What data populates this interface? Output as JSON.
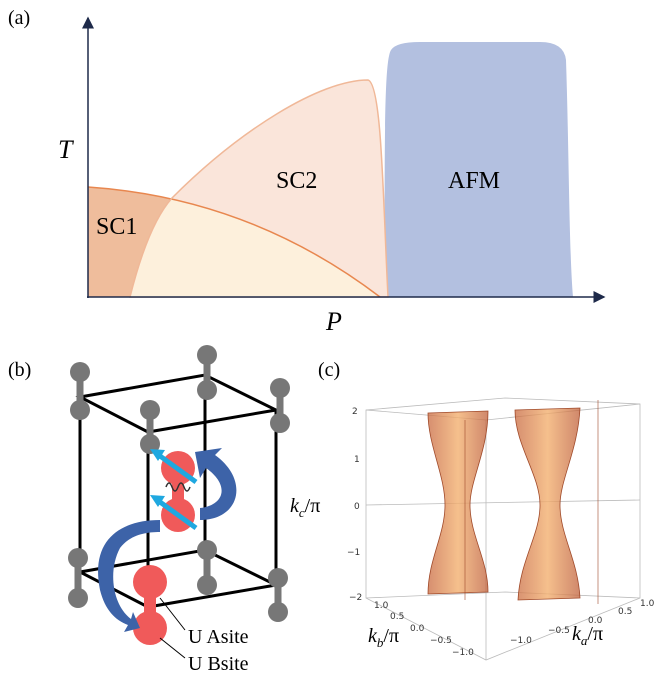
{
  "panel_a": {
    "label": "(a)",
    "y_axis": "T",
    "x_axis": "P",
    "regions": [
      "SC1",
      "SC2",
      "AFM"
    ]
  },
  "panel_b": {
    "label": "(b)",
    "sites": [
      "U Asite",
      "U Bsite"
    ]
  },
  "panel_c": {
    "label": "(c)",
    "z_ticks": [
      "2",
      "1",
      "0",
      "−1",
      "−2"
    ],
    "kb_ticks": [
      "1.0",
      "0.5",
      "0.0",
      "−0.5",
      "−1.0"
    ],
    "ka_ticks": [
      "−1.0",
      "−0.5",
      "0.0",
      "0.5",
      "1.0"
    ],
    "z_axis": {
      "base": "k",
      "sub": "c",
      "rest": "/π"
    },
    "kb_axis": {
      "base": "k",
      "sub": "b",
      "rest": "/π"
    },
    "ka_axis": {
      "base": "k",
      "sub": "a",
      "rest": "/π"
    }
  }
}
